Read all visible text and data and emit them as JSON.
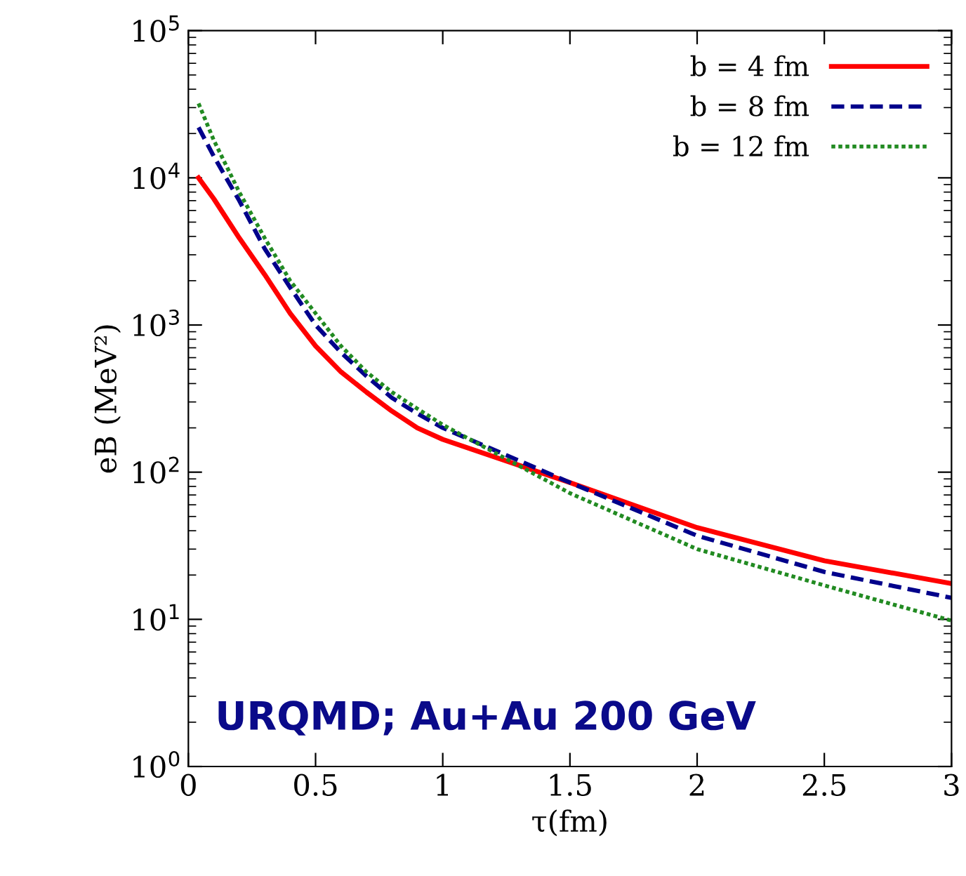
{
  "chart_data": {
    "type": "line",
    "xlabel": "τ(fm)",
    "ylabel": "eB (MeV²)",
    "log": "y",
    "legend": "top right",
    "grid": false,
    "xlim": [
      0,
      3
    ],
    "xticks": [
      0,
      0.5,
      1,
      1.5,
      2,
      2.5,
      3
    ],
    "ylim": [
      1,
      100000
    ],
    "yticks": [
      {
        "value": 1,
        "label": "10$^{0}$"
      },
      {
        "value": 10,
        "label": "10$^{1}$"
      },
      {
        "value": 100,
        "label": "10$^{2}$"
      },
      {
        "value": 1000,
        "label": "10$^{3}$"
      },
      {
        "value": 10000,
        "label": "10$^{4}$"
      },
      {
        "value": 100000,
        "label": "10$^{5}$"
      }
    ],
    "x": [
      0.04,
      0.1,
      0.2,
      0.3,
      0.4,
      0.5,
      0.6,
      0.7,
      0.8,
      0.9,
      1.0,
      1.5,
      2.0,
      2.5,
      3.0
    ],
    "series": [
      {
        "name": "b = 4 fm",
        "color": "#ff0000",
        "line_style": "solid",
        "values": [
          10000,
          7200,
          3900,
          2200,
          1200,
          720,
          480,
          350,
          260,
          200,
          167,
          85,
          42,
          25,
          17.5
        ]
      },
      {
        "name": "b = 8 fm",
        "color": "#00008b",
        "line_style": "dashed",
        "values": [
          22000,
          14000,
          7000,
          3300,
          1800,
          1000,
          650,
          450,
          320,
          250,
          200,
          85,
          37,
          21,
          14
        ]
      },
      {
        "name": "b = 12 fm",
        "color": "#228b22",
        "line_style": "dotted",
        "values": [
          32000,
          18000,
          8000,
          3900,
          2000,
          1200,
          720,
          480,
          350,
          270,
          210,
          72,
          30,
          17,
          9.8
        ]
      }
    ],
    "annotations": [
      "URQMD; Au+Au 200 GeV"
    ]
  }
}
